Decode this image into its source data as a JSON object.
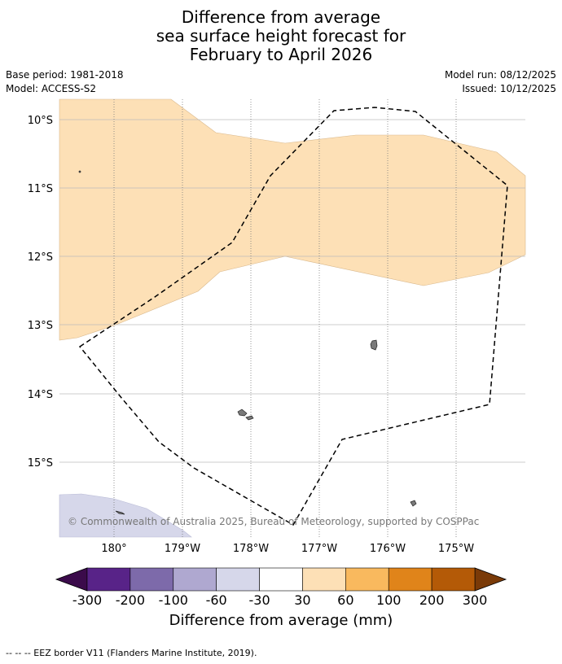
{
  "title": {
    "line1": "Difference from average",
    "line2": "sea surface height forecast for",
    "line3": "February to April 2026"
  },
  "meta": {
    "base_period": "Base period: 1981-2018",
    "model": "Model: ACCESS-S2",
    "model_run": "Model run: 08/12/2025",
    "issued": "Issued: 10/12/2025"
  },
  "map": {
    "lat_labels": [
      "10°S",
      "11°S",
      "12°S",
      "13°S",
      "14°S",
      "15°S"
    ],
    "lon_labels": [
      "180°",
      "179°W",
      "178°W",
      "177°W",
      "176°W",
      "175°W"
    ],
    "copyright": "© Commonwealth of Australia 2025, Bureau of Meteorology, supported by COSPPac",
    "extent": {
      "lon_min": 179.2,
      "lon_max": -174.2,
      "lat_min": -16.15,
      "lat_max": -9.7
    }
  },
  "colorbar": {
    "title": "Difference from average (mm)",
    "ticks": [
      "-300",
      "-200",
      "-100",
      "-60",
      "-30",
      "30",
      "60",
      "100",
      "200",
      "300"
    ],
    "colors": {
      "under": "#3b0b4b",
      "bins": [
        "#582388",
        "#7d6aaa",
        "#afa8d0",
        "#d6d7ea",
        "#ffffff",
        "#fde0b6",
        "#f9b95e",
        "#e0841a",
        "#b45a07"
      ],
      "over": "#7a3a08"
    }
  },
  "footer": {
    "legend": "--  --  -- EEZ border V11 (Flanders Marine Institute, 2019)."
  }
}
